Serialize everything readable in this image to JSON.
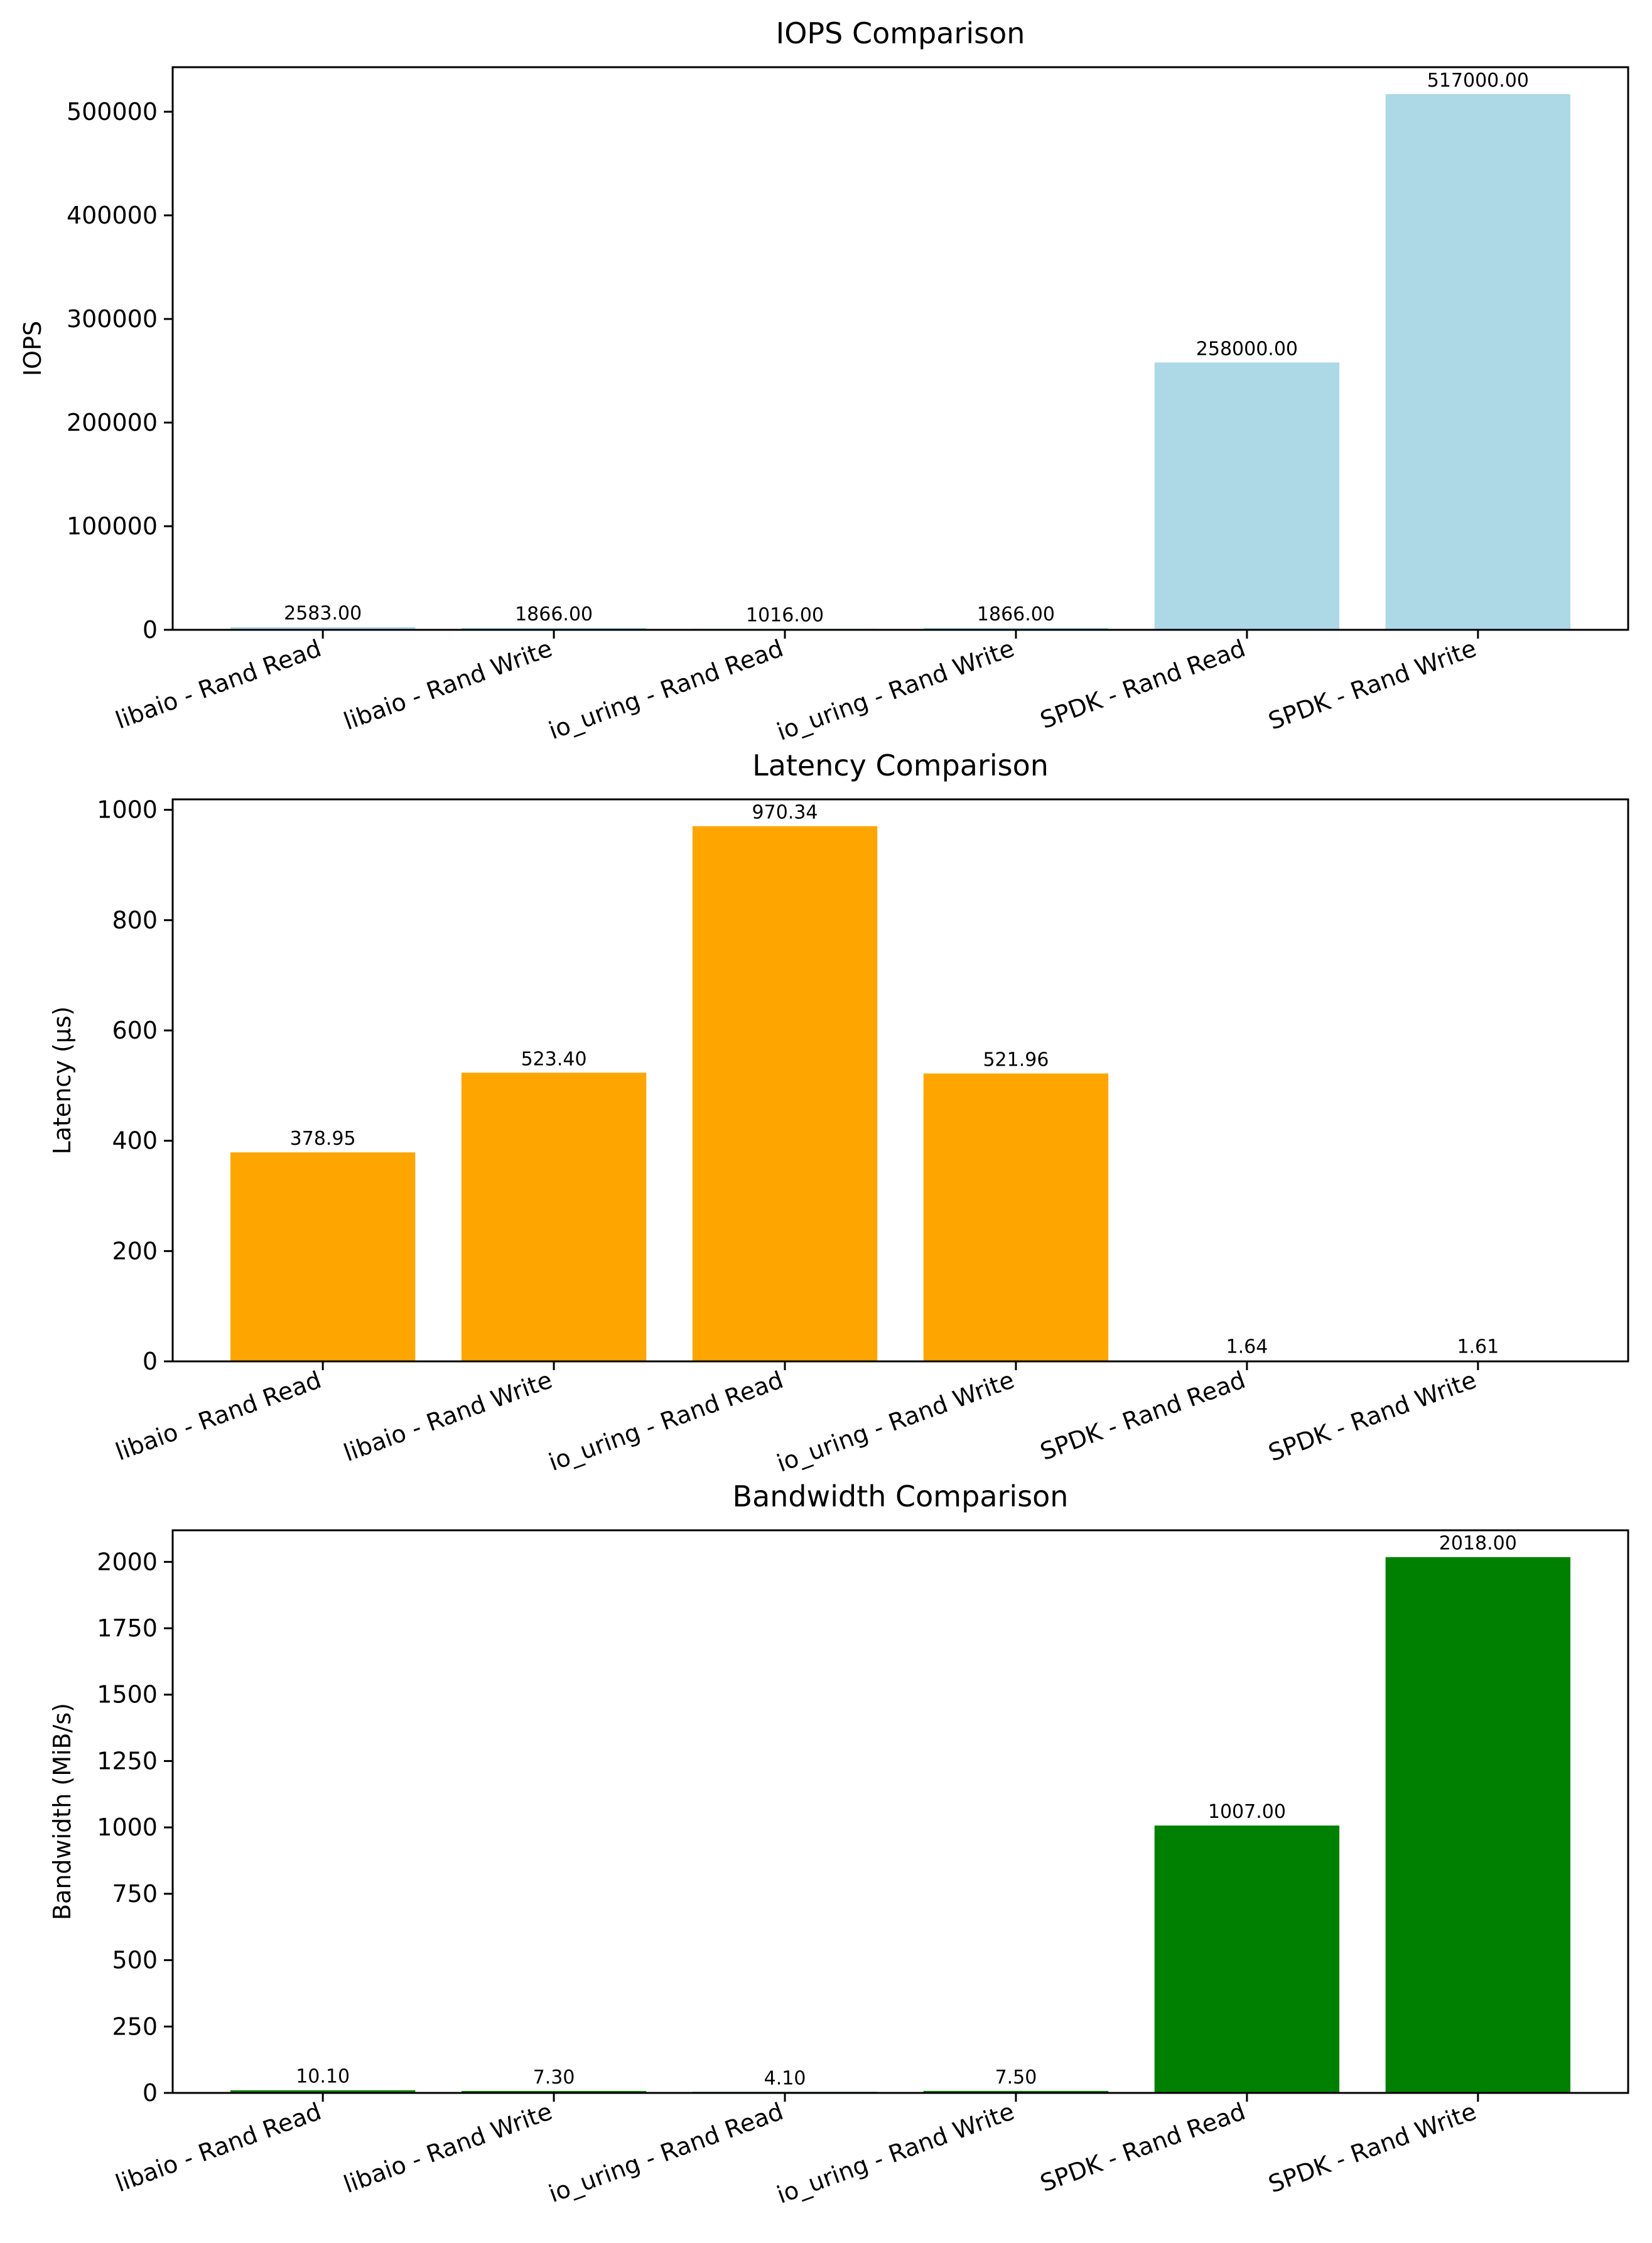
{
  "chart_data": [
    {
      "type": "bar",
      "title": "IOPS Comparison",
      "xlabel": "",
      "ylabel": "IOPS",
      "categories": [
        "libaio - Rand Read",
        "libaio - Rand Write",
        "io_uring - Rand Read",
        "io_uring - Rand Write",
        "SPDK - Rand Read",
        "SPDK - Rand Write"
      ],
      "values": [
        2583,
        1866,
        1016,
        1866,
        258000,
        517000
      ],
      "value_labels": [
        "2583.00",
        "1866.00",
        "1016.00",
        "1866.00",
        "258000.00",
        "517000.00"
      ],
      "yticks": [
        0,
        100000,
        200000,
        300000,
        400000,
        500000
      ],
      "ytick_labels": [
        "0",
        "100000",
        "200000",
        "300000",
        "400000",
        "500000"
      ],
      "ylim": [
        0,
        543000
      ],
      "color": "#add8e6"
    },
    {
      "type": "bar",
      "title": "Latency Comparison",
      "xlabel": "",
      "ylabel": "Latency (µs)",
      "categories": [
        "libaio - Rand Read",
        "libaio - Rand Write",
        "io_uring - Rand Read",
        "io_uring - Rand Write",
        "SPDK - Rand Read",
        "SPDK - Rand Write"
      ],
      "values": [
        378.95,
        523.4,
        970.34,
        521.96,
        1.64,
        1.61
      ],
      "value_labels": [
        "378.95",
        "523.40",
        "970.34",
        "521.96",
        "1.64",
        "1.61"
      ],
      "yticks": [
        0,
        200,
        400,
        600,
        800,
        1000
      ],
      "ytick_labels": [
        "0",
        "200",
        "400",
        "600",
        "800",
        "1000"
      ],
      "ylim": [
        0,
        1019
      ],
      "color": "#ffa500"
    },
    {
      "type": "bar",
      "title": "Bandwidth Comparison",
      "xlabel": "",
      "ylabel": "Bandwidth (MiB/s)",
      "categories": [
        "libaio - Rand Read",
        "libaio - Rand Write",
        "io_uring - Rand Read",
        "io_uring - Rand Write",
        "SPDK - Rand Read",
        "SPDK - Rand Write"
      ],
      "values": [
        10.1,
        7.3,
        4.1,
        7.5,
        1007,
        2018
      ],
      "value_labels": [
        "10.10",
        "7.30",
        "4.10",
        "7.50",
        "1007.00",
        "2018.00"
      ],
      "yticks": [
        0,
        250,
        500,
        750,
        1000,
        1250,
        1500,
        1750,
        2000
      ],
      "ytick_labels": [
        "0",
        "250",
        "500",
        "750",
        "1000",
        "1250",
        "1500",
        "1750",
        "2000"
      ],
      "ylim": [
        0,
        2119
      ],
      "color": "#008000"
    }
  ]
}
